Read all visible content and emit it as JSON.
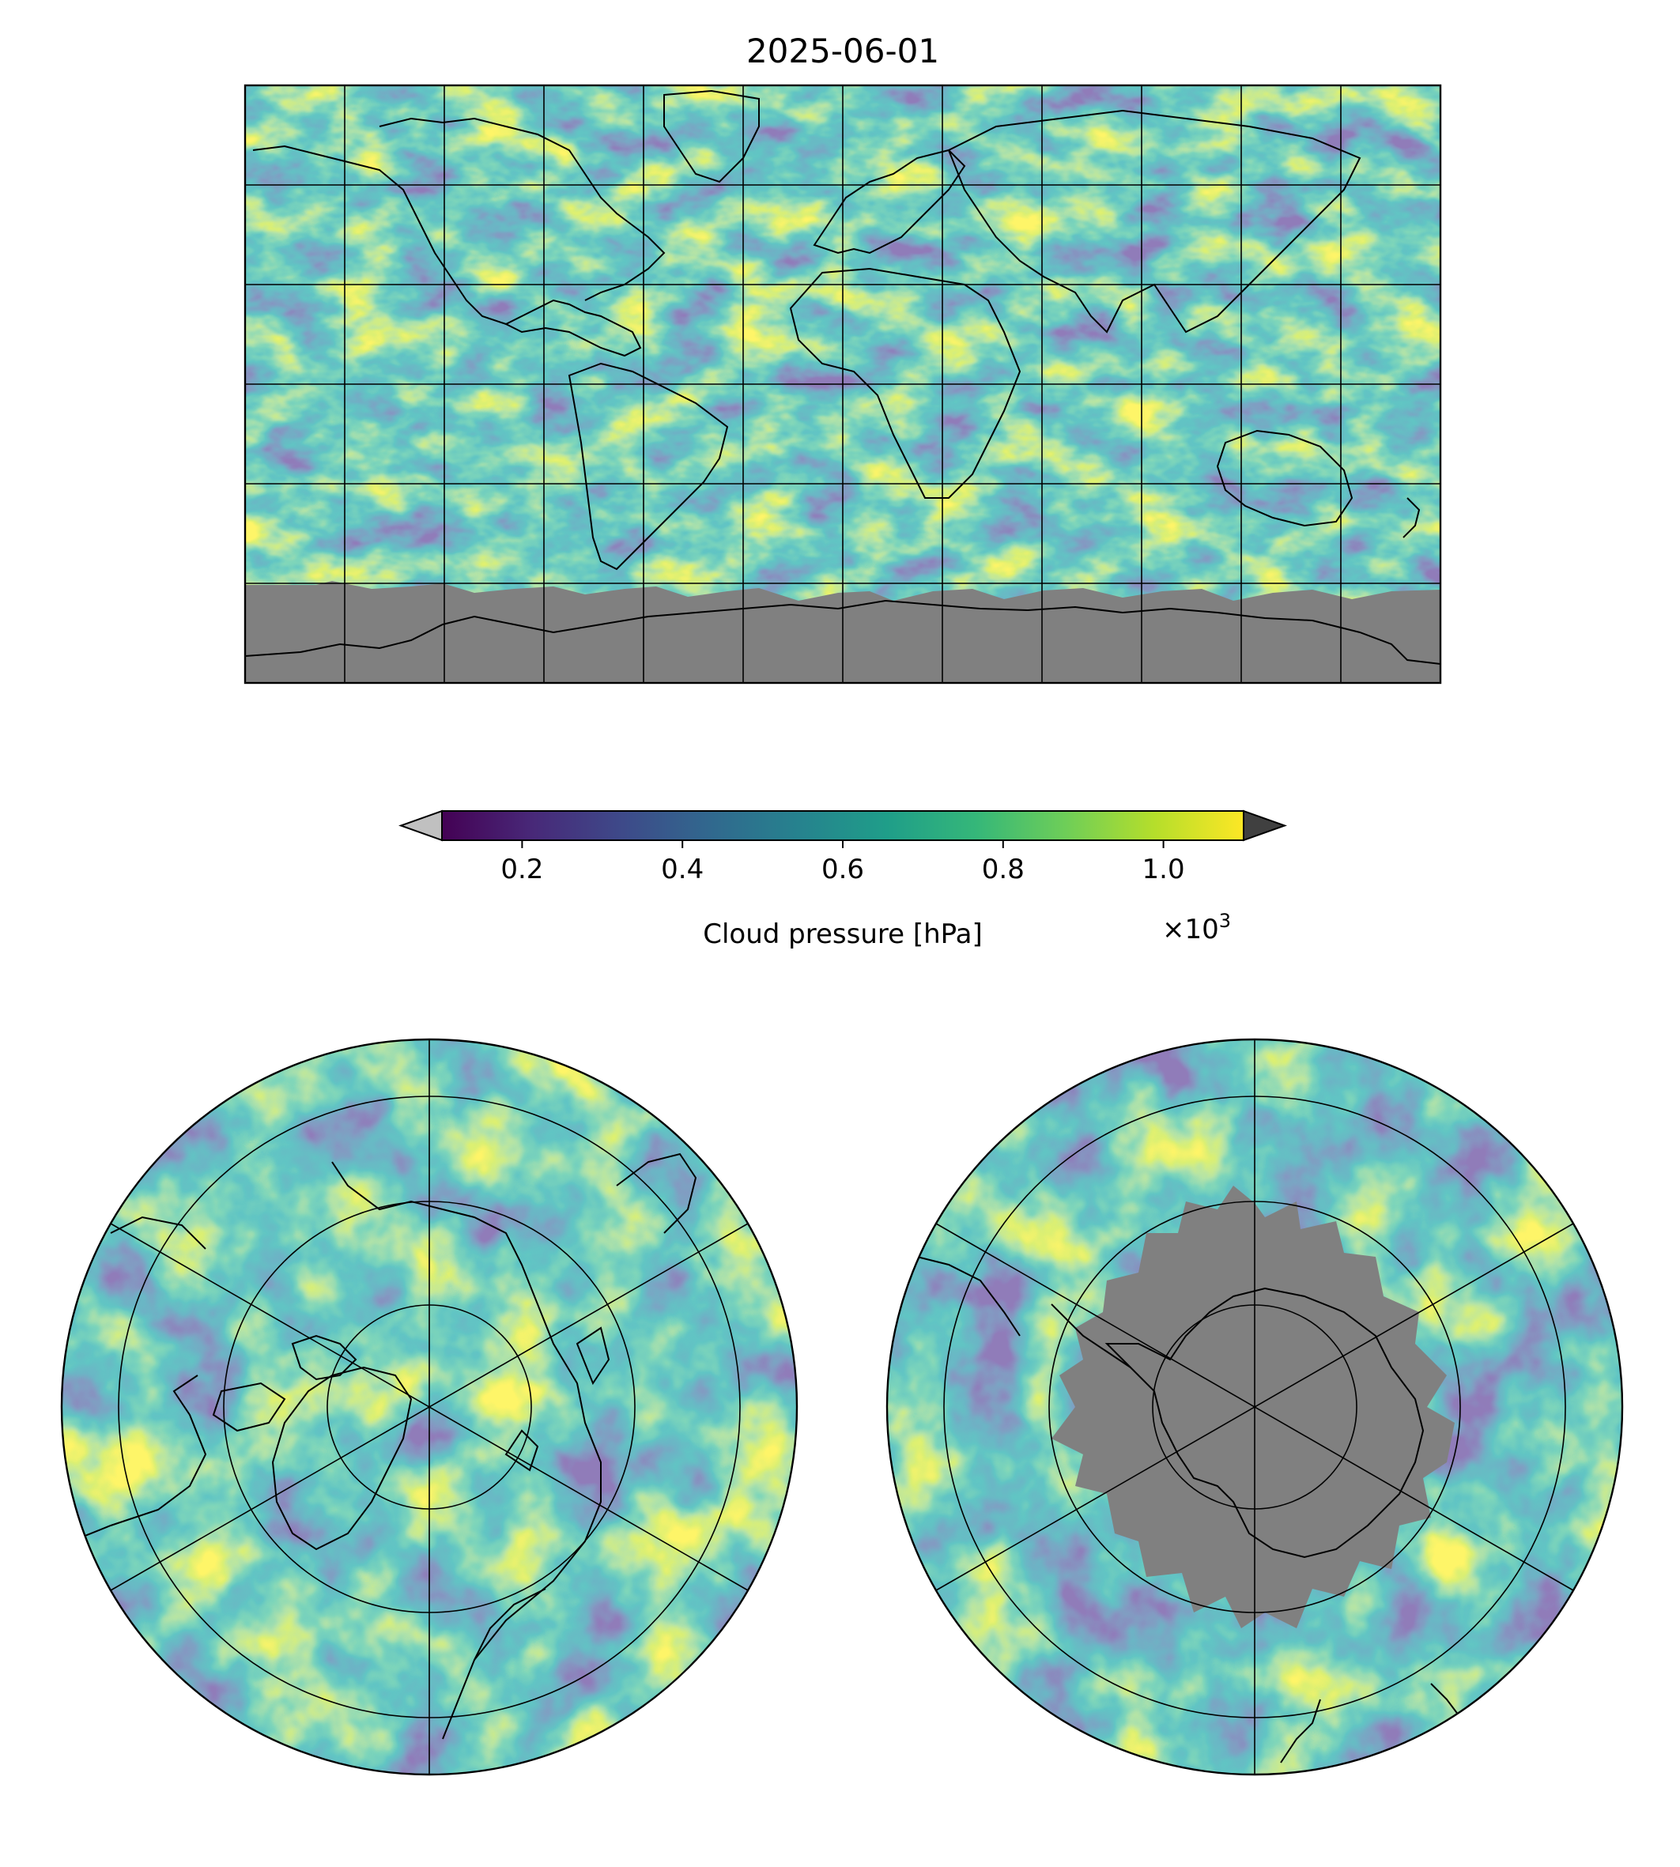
{
  "title": "2025-06-01",
  "colorbar": {
    "label": "Cloud pressure [hPa]",
    "ticks": [
      "0.2",
      "0.4",
      "0.6",
      "0.8",
      "1.0"
    ],
    "tick_values": [
      0.2,
      0.4,
      0.6,
      0.8,
      1.0
    ],
    "range": [
      0.1,
      1.1
    ],
    "multiplier_base": "×10",
    "multiplier_exp": "3",
    "colormap": "viridis",
    "extend_low_color": "#c0c0c0",
    "extend_high_color": "#404040"
  },
  "maps": [
    {
      "id": "global",
      "projection": "plate-carree",
      "missing_color": "#808080",
      "gridlines": "30 degree"
    },
    {
      "id": "north-polar",
      "projection": "north-polar-stereographic"
    },
    {
      "id": "south-polar",
      "projection": "south-polar-stereographic",
      "missing_color": "#808080"
    }
  ],
  "colors": {
    "viridis_stops": [
      "#440154",
      "#482878",
      "#3e4989",
      "#31688e",
      "#26828e",
      "#1f9e89",
      "#35b779",
      "#6ece58",
      "#b5de2b",
      "#fde725"
    ],
    "missing": "#808080",
    "coastline": "#000000"
  }
}
